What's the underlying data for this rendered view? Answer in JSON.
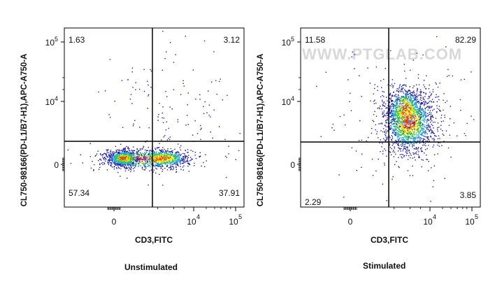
{
  "chart_data": [
    {
      "type": "scatter",
      "plot_style": "pseudocolor density dot plot with quadrant gates",
      "caption": "Unstimulated",
      "xlabel": "CD3,FITC",
      "ylabel": "CL750-98166(PD-L1/B7-H1),APC-A750-A",
      "x_scale": "biexponential",
      "y_scale": "biexponential",
      "x_ticks": [
        {
          "label": "0",
          "value": 0
        },
        {
          "label": "10",
          "exp": "4",
          "value": 10000
        },
        {
          "label": "10",
          "exp": "5",
          "value": 100000
        }
      ],
      "y_ticks": [
        {
          "label": "0",
          "value": 0
        },
        {
          "label": "10",
          "exp": "4",
          "value": 10000
        },
        {
          "label": "10",
          "exp": "5",
          "value": 100000
        }
      ],
      "quadrants": [
        {
          "position": "upper-left",
          "percent": "1.63"
        },
        {
          "position": "upper-right",
          "percent": "3.12"
        },
        {
          "position": "lower-left",
          "percent": "57.34"
        },
        {
          "position": "lower-right",
          "percent": "37.91"
        }
      ],
      "watermark": ""
    },
    {
      "type": "scatter",
      "plot_style": "pseudocolor density dot plot with quadrant gates",
      "caption": "Stimulated",
      "xlabel": "CD3,FITC",
      "ylabel": "CL750-98166(PD-L1/B7-H1),APC-A750-A",
      "x_scale": "biexponential",
      "y_scale": "biexponential",
      "x_ticks": [
        {
          "label": "0",
          "value": 0
        },
        {
          "label": "10",
          "exp": "4",
          "value": 10000
        },
        {
          "label": "10",
          "exp": "5",
          "value": 100000
        }
      ],
      "y_ticks": [
        {
          "label": "0",
          "value": 0
        },
        {
          "label": "10",
          "exp": "4",
          "value": 10000
        },
        {
          "label": "10",
          "exp": "5",
          "value": 100000
        }
      ],
      "quadrants": [
        {
          "position": "upper-left",
          "percent": "11.58"
        },
        {
          "position": "upper-right",
          "percent": "82.29"
        },
        {
          "position": "lower-left",
          "percent": "2.29"
        },
        {
          "position": "lower-right",
          "percent": "3.85"
        }
      ],
      "watermark": "WWW.PTGLAB.COM"
    }
  ],
  "colors": {
    "density_low": "#1a1aa6",
    "density_mid_low": "#1fa0e0",
    "density_mid": "#2ecc40",
    "density_high": "#f5e600",
    "density_peak": "#ff2a10",
    "axis": "#000000",
    "watermark": "#d8d8d8"
  }
}
